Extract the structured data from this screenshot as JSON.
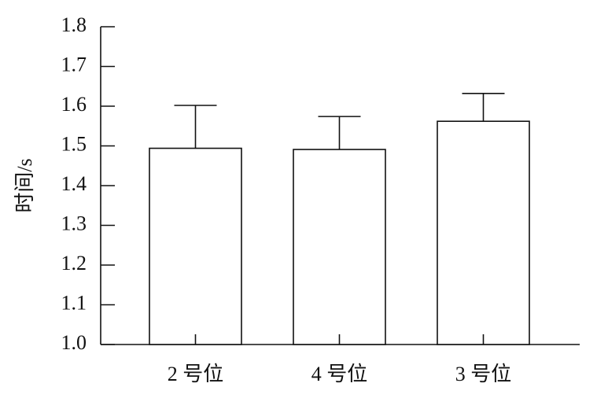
{
  "chart_data": {
    "type": "bar",
    "y_label": "时间/s",
    "categories": [
      "2 号位",
      "4 号位",
      "3 号位"
    ],
    "values": [
      1.494,
      1.491,
      1.562
    ],
    "errors": [
      0.108,
      0.083,
      0.07
    ],
    "color": "#ffffff",
    "ylim": [
      1.0,
      1.8
    ],
    "yticks": [
      {
        "value": 1.0,
        "label": "1.0"
      },
      1.1,
      1.2,
      1.3,
      1.4,
      1.5,
      1.6,
      1.7,
      1.8
    ],
    "grid": false
  }
}
